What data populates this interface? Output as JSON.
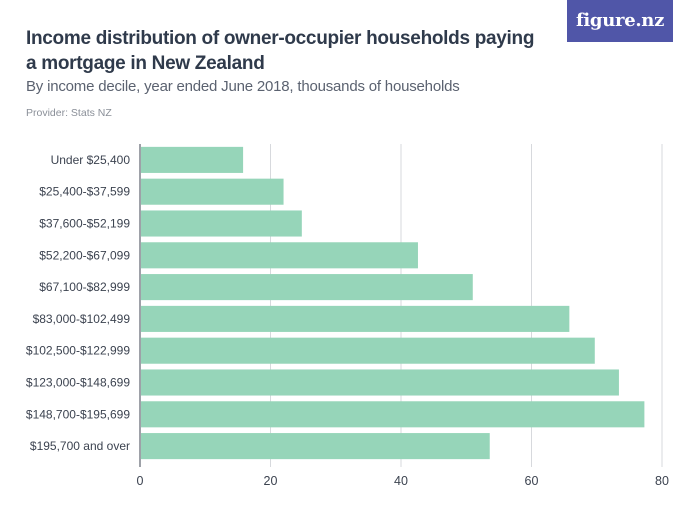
{
  "header": {
    "title": "Income distribution of owner-occupier households paying a mortgage in New Zealand",
    "subtitle": "By income decile, year ended June 2018, thousands of households",
    "provider": "Provider: Stats NZ",
    "logo_text": "figure.nz"
  },
  "colors": {
    "bar": "#96d5b9",
    "grid": "#d7d9dd",
    "axis": "#3c4350",
    "logo_bg": "#5056a8"
  },
  "chart_data": {
    "type": "bar",
    "orientation": "horizontal",
    "title": "Income distribution of owner-occupier households paying a mortgage in New Zealand",
    "subtitle": "By income decile, year ended June 2018, thousands of households",
    "categories": [
      "Under $25,400",
      "$25,400-$37,599",
      "$37,600-$52,199",
      "$52,200-$67,099",
      "$67,100-$82,999",
      "$83,000-$102,499",
      "$102,500-$122,999",
      "$123,000-$148,699",
      "$148,700-$195,699",
      "$195,700 and over"
    ],
    "values": [
      15.8,
      22.0,
      24.8,
      42.6,
      51.0,
      65.8,
      69.7,
      73.4,
      77.3,
      53.6
    ],
    "xlim": [
      0,
      80
    ],
    "xticks": [
      0,
      20,
      40,
      60,
      80
    ],
    "xlabel": "",
    "ylabel": "",
    "grid": true,
    "legend": "none"
  }
}
